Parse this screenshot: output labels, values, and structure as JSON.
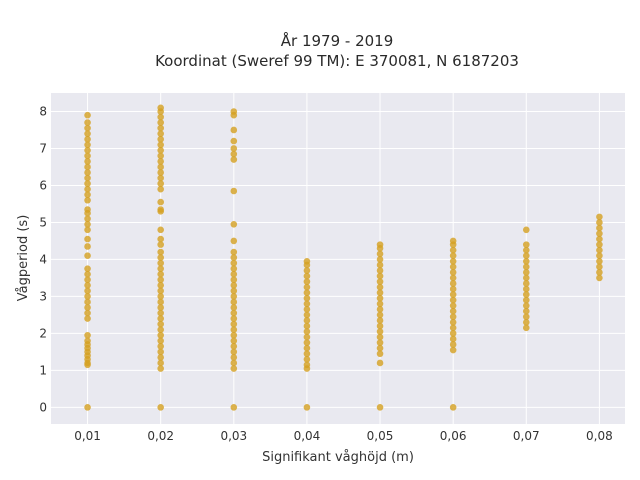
{
  "chart_data": {
    "type": "scatter",
    "title": "År 1979 - 2019",
    "subtitle": "Koordinat (Sweref 99 TM): E 370081, N 6187203",
    "xlabel": "Signifikant våghöjd (m)",
    "ylabel": "Vågperiod (s)",
    "xlim": [
      0.005,
      0.0835
    ],
    "ylim": [
      -0.45,
      8.5
    ],
    "x_ticks": [
      0.01,
      0.02,
      0.03,
      0.04,
      0.05,
      0.06,
      0.07,
      0.08
    ],
    "x_tick_labels": [
      "0,01",
      "0,02",
      "0,03",
      "0,04",
      "0,05",
      "0,06",
      "0,07",
      "0,08"
    ],
    "y_ticks": [
      0,
      1,
      2,
      3,
      4,
      5,
      6,
      7,
      8
    ],
    "y_tick_labels": [
      "0",
      "1",
      "2",
      "3",
      "4",
      "5",
      "6",
      "7",
      "8"
    ],
    "grid": true,
    "background_color": "#e9e9f0",
    "point_color": "#d4a020",
    "series": [
      {
        "points": [
          {
            "x": 0.01,
            "y": 0
          },
          {
            "x": 0.01,
            "y": 1.15
          },
          {
            "x": 0.01,
            "y": 1.2
          },
          {
            "x": 0.01,
            "y": 1.3
          },
          {
            "x": 0.01,
            "y": 1.4
          },
          {
            "x": 0.01,
            "y": 1.5
          },
          {
            "x": 0.01,
            "y": 1.6
          },
          {
            "x": 0.01,
            "y": 1.7
          },
          {
            "x": 0.01,
            "y": 1.8
          },
          {
            "x": 0.01,
            "y": 1.95
          },
          {
            "x": 0.01,
            "y": 2.4
          },
          {
            "x": 0.01,
            "y": 2.55
          },
          {
            "x": 0.01,
            "y": 2.7
          },
          {
            "x": 0.01,
            "y": 2.85
          },
          {
            "x": 0.01,
            "y": 3.0
          },
          {
            "x": 0.01,
            "y": 3.15
          },
          {
            "x": 0.01,
            "y": 3.3
          },
          {
            "x": 0.01,
            "y": 3.45
          },
          {
            "x": 0.01,
            "y": 3.6
          },
          {
            "x": 0.01,
            "y": 3.75
          },
          {
            "x": 0.01,
            "y": 4.1
          },
          {
            "x": 0.01,
            "y": 4.35
          },
          {
            "x": 0.01,
            "y": 4.55
          },
          {
            "x": 0.01,
            "y": 4.8
          },
          {
            "x": 0.01,
            "y": 4.95
          },
          {
            "x": 0.01,
            "y": 5.1
          },
          {
            "x": 0.01,
            "y": 5.25
          },
          {
            "x": 0.01,
            "y": 5.35
          },
          {
            "x": 0.01,
            "y": 5.6
          },
          {
            "x": 0.01,
            "y": 5.75
          },
          {
            "x": 0.01,
            "y": 5.9
          },
          {
            "x": 0.01,
            "y": 6.05
          },
          {
            "x": 0.01,
            "y": 6.2
          },
          {
            "x": 0.01,
            "y": 6.35
          },
          {
            "x": 0.01,
            "y": 6.5
          },
          {
            "x": 0.01,
            "y": 6.65
          },
          {
            "x": 0.01,
            "y": 6.8
          },
          {
            "x": 0.01,
            "y": 6.95
          },
          {
            "x": 0.01,
            "y": 7.1
          },
          {
            "x": 0.01,
            "y": 7.25
          },
          {
            "x": 0.01,
            "y": 7.4
          },
          {
            "x": 0.01,
            "y": 7.55
          },
          {
            "x": 0.01,
            "y": 7.7
          },
          {
            "x": 0.01,
            "y": 7.9
          },
          {
            "x": 0.02,
            "y": 0
          },
          {
            "x": 0.02,
            "y": 1.05
          },
          {
            "x": 0.02,
            "y": 1.2
          },
          {
            "x": 0.02,
            "y": 1.35
          },
          {
            "x": 0.02,
            "y": 1.5
          },
          {
            "x": 0.02,
            "y": 1.65
          },
          {
            "x": 0.02,
            "y": 1.8
          },
          {
            "x": 0.02,
            "y": 1.95
          },
          {
            "x": 0.02,
            "y": 2.1
          },
          {
            "x": 0.02,
            "y": 2.25
          },
          {
            "x": 0.02,
            "y": 2.4
          },
          {
            "x": 0.02,
            "y": 2.55
          },
          {
            "x": 0.02,
            "y": 2.7
          },
          {
            "x": 0.02,
            "y": 2.85
          },
          {
            "x": 0.02,
            "y": 3.0
          },
          {
            "x": 0.02,
            "y": 3.15
          },
          {
            "x": 0.02,
            "y": 3.3
          },
          {
            "x": 0.02,
            "y": 3.45
          },
          {
            "x": 0.02,
            "y": 3.6
          },
          {
            "x": 0.02,
            "y": 3.75
          },
          {
            "x": 0.02,
            "y": 3.9
          },
          {
            "x": 0.02,
            "y": 4.05
          },
          {
            "x": 0.02,
            "y": 4.2
          },
          {
            "x": 0.02,
            "y": 4.4
          },
          {
            "x": 0.02,
            "y": 4.55
          },
          {
            "x": 0.02,
            "y": 4.8
          },
          {
            "x": 0.02,
            "y": 5.3
          },
          {
            "x": 0.02,
            "y": 5.35
          },
          {
            "x": 0.02,
            "y": 5.55
          },
          {
            "x": 0.02,
            "y": 5.9
          },
          {
            "x": 0.02,
            "y": 6.05
          },
          {
            "x": 0.02,
            "y": 6.2
          },
          {
            "x": 0.02,
            "y": 6.35
          },
          {
            "x": 0.02,
            "y": 6.5
          },
          {
            "x": 0.02,
            "y": 6.65
          },
          {
            "x": 0.02,
            "y": 6.8
          },
          {
            "x": 0.02,
            "y": 6.95
          },
          {
            "x": 0.02,
            "y": 7.1
          },
          {
            "x": 0.02,
            "y": 7.25
          },
          {
            "x": 0.02,
            "y": 7.4
          },
          {
            "x": 0.02,
            "y": 7.55
          },
          {
            "x": 0.02,
            "y": 7.7
          },
          {
            "x": 0.02,
            "y": 7.85
          },
          {
            "x": 0.02,
            "y": 8.0
          },
          {
            "x": 0.02,
            "y": 8.1
          },
          {
            "x": 0.03,
            "y": 0
          },
          {
            "x": 0.03,
            "y": 1.05
          },
          {
            "x": 0.03,
            "y": 1.2
          },
          {
            "x": 0.03,
            "y": 1.35
          },
          {
            "x": 0.03,
            "y": 1.5
          },
          {
            "x": 0.03,
            "y": 1.65
          },
          {
            "x": 0.03,
            "y": 1.8
          },
          {
            "x": 0.03,
            "y": 1.95
          },
          {
            "x": 0.03,
            "y": 2.1
          },
          {
            "x": 0.03,
            "y": 2.25
          },
          {
            "x": 0.03,
            "y": 2.4
          },
          {
            "x": 0.03,
            "y": 2.55
          },
          {
            "x": 0.03,
            "y": 2.7
          },
          {
            "x": 0.03,
            "y": 2.85
          },
          {
            "x": 0.03,
            "y": 3.0
          },
          {
            "x": 0.03,
            "y": 3.15
          },
          {
            "x": 0.03,
            "y": 3.3
          },
          {
            "x": 0.03,
            "y": 3.45
          },
          {
            "x": 0.03,
            "y": 3.6
          },
          {
            "x": 0.03,
            "y": 3.75
          },
          {
            "x": 0.03,
            "y": 3.9
          },
          {
            "x": 0.03,
            "y": 4.05
          },
          {
            "x": 0.03,
            "y": 4.2
          },
          {
            "x": 0.03,
            "y": 4.5
          },
          {
            "x": 0.03,
            "y": 4.95
          },
          {
            "x": 0.03,
            "y": 5.85
          },
          {
            "x": 0.03,
            "y": 6.7
          },
          {
            "x": 0.03,
            "y": 6.85
          },
          {
            "x": 0.03,
            "y": 7.0
          },
          {
            "x": 0.03,
            "y": 7.2
          },
          {
            "x": 0.03,
            "y": 7.5
          },
          {
            "x": 0.03,
            "y": 7.9
          },
          {
            "x": 0.03,
            "y": 8.0
          },
          {
            "x": 0.04,
            "y": 0
          },
          {
            "x": 0.04,
            "y": 1.05
          },
          {
            "x": 0.04,
            "y": 1.15
          },
          {
            "x": 0.04,
            "y": 1.3
          },
          {
            "x": 0.04,
            "y": 1.45
          },
          {
            "x": 0.04,
            "y": 1.6
          },
          {
            "x": 0.04,
            "y": 1.75
          },
          {
            "x": 0.04,
            "y": 1.9
          },
          {
            "x": 0.04,
            "y": 2.05
          },
          {
            "x": 0.04,
            "y": 2.2
          },
          {
            "x": 0.04,
            "y": 2.35
          },
          {
            "x": 0.04,
            "y": 2.5
          },
          {
            "x": 0.04,
            "y": 2.65
          },
          {
            "x": 0.04,
            "y": 2.8
          },
          {
            "x": 0.04,
            "y": 2.95
          },
          {
            "x": 0.04,
            "y": 3.1
          },
          {
            "x": 0.04,
            "y": 3.25
          },
          {
            "x": 0.04,
            "y": 3.4
          },
          {
            "x": 0.04,
            "y": 3.55
          },
          {
            "x": 0.04,
            "y": 3.7
          },
          {
            "x": 0.04,
            "y": 3.85
          },
          {
            "x": 0.04,
            "y": 3.95
          },
          {
            "x": 0.05,
            "y": 0
          },
          {
            "x": 0.05,
            "y": 1.2
          },
          {
            "x": 0.05,
            "y": 1.45
          },
          {
            "x": 0.05,
            "y": 1.6
          },
          {
            "x": 0.05,
            "y": 1.75
          },
          {
            "x": 0.05,
            "y": 1.9
          },
          {
            "x": 0.05,
            "y": 2.05
          },
          {
            "x": 0.05,
            "y": 2.2
          },
          {
            "x": 0.05,
            "y": 2.35
          },
          {
            "x": 0.05,
            "y": 2.5
          },
          {
            "x": 0.05,
            "y": 2.65
          },
          {
            "x": 0.05,
            "y": 2.8
          },
          {
            "x": 0.05,
            "y": 2.95
          },
          {
            "x": 0.05,
            "y": 3.1
          },
          {
            "x": 0.05,
            "y": 3.25
          },
          {
            "x": 0.05,
            "y": 3.4
          },
          {
            "x": 0.05,
            "y": 3.55
          },
          {
            "x": 0.05,
            "y": 3.7
          },
          {
            "x": 0.05,
            "y": 3.85
          },
          {
            "x": 0.05,
            "y": 4.0
          },
          {
            "x": 0.05,
            "y": 4.15
          },
          {
            "x": 0.05,
            "y": 4.3
          },
          {
            "x": 0.05,
            "y": 4.4
          },
          {
            "x": 0.06,
            "y": 0
          },
          {
            "x": 0.06,
            "y": 1.55
          },
          {
            "x": 0.06,
            "y": 1.7
          },
          {
            "x": 0.06,
            "y": 1.85
          },
          {
            "x": 0.06,
            "y": 2.0
          },
          {
            "x": 0.06,
            "y": 2.15
          },
          {
            "x": 0.06,
            "y": 2.3
          },
          {
            "x": 0.06,
            "y": 2.45
          },
          {
            "x": 0.06,
            "y": 2.6
          },
          {
            "x": 0.06,
            "y": 2.75
          },
          {
            "x": 0.06,
            "y": 2.9
          },
          {
            "x": 0.06,
            "y": 3.05
          },
          {
            "x": 0.06,
            "y": 3.2
          },
          {
            "x": 0.06,
            "y": 3.35
          },
          {
            "x": 0.06,
            "y": 3.5
          },
          {
            "x": 0.06,
            "y": 3.65
          },
          {
            "x": 0.06,
            "y": 3.8
          },
          {
            "x": 0.06,
            "y": 3.95
          },
          {
            "x": 0.06,
            "y": 4.1
          },
          {
            "x": 0.06,
            "y": 4.25
          },
          {
            "x": 0.06,
            "y": 4.4
          },
          {
            "x": 0.06,
            "y": 4.5
          },
          {
            "x": 0.07,
            "y": 2.15
          },
          {
            "x": 0.07,
            "y": 2.3
          },
          {
            "x": 0.07,
            "y": 2.45
          },
          {
            "x": 0.07,
            "y": 2.6
          },
          {
            "x": 0.07,
            "y": 2.75
          },
          {
            "x": 0.07,
            "y": 2.9
          },
          {
            "x": 0.07,
            "y": 3.05
          },
          {
            "x": 0.07,
            "y": 3.2
          },
          {
            "x": 0.07,
            "y": 3.35
          },
          {
            "x": 0.07,
            "y": 3.5
          },
          {
            "x": 0.07,
            "y": 3.65
          },
          {
            "x": 0.07,
            "y": 3.8
          },
          {
            "x": 0.07,
            "y": 3.95
          },
          {
            "x": 0.07,
            "y": 4.1
          },
          {
            "x": 0.07,
            "y": 4.25
          },
          {
            "x": 0.07,
            "y": 4.4
          },
          {
            "x": 0.07,
            "y": 4.8
          },
          {
            "x": 0.08,
            "y": 3.5
          },
          {
            "x": 0.08,
            "y": 3.65
          },
          {
            "x": 0.08,
            "y": 3.8
          },
          {
            "x": 0.08,
            "y": 3.95
          },
          {
            "x": 0.08,
            "y": 4.1
          },
          {
            "x": 0.08,
            "y": 4.25
          },
          {
            "x": 0.08,
            "y": 4.4
          },
          {
            "x": 0.08,
            "y": 4.55
          },
          {
            "x": 0.08,
            "y": 4.7
          },
          {
            "x": 0.08,
            "y": 4.85
          },
          {
            "x": 0.08,
            "y": 5.0
          },
          {
            "x": 0.08,
            "y": 5.15
          }
        ]
      }
    ]
  }
}
